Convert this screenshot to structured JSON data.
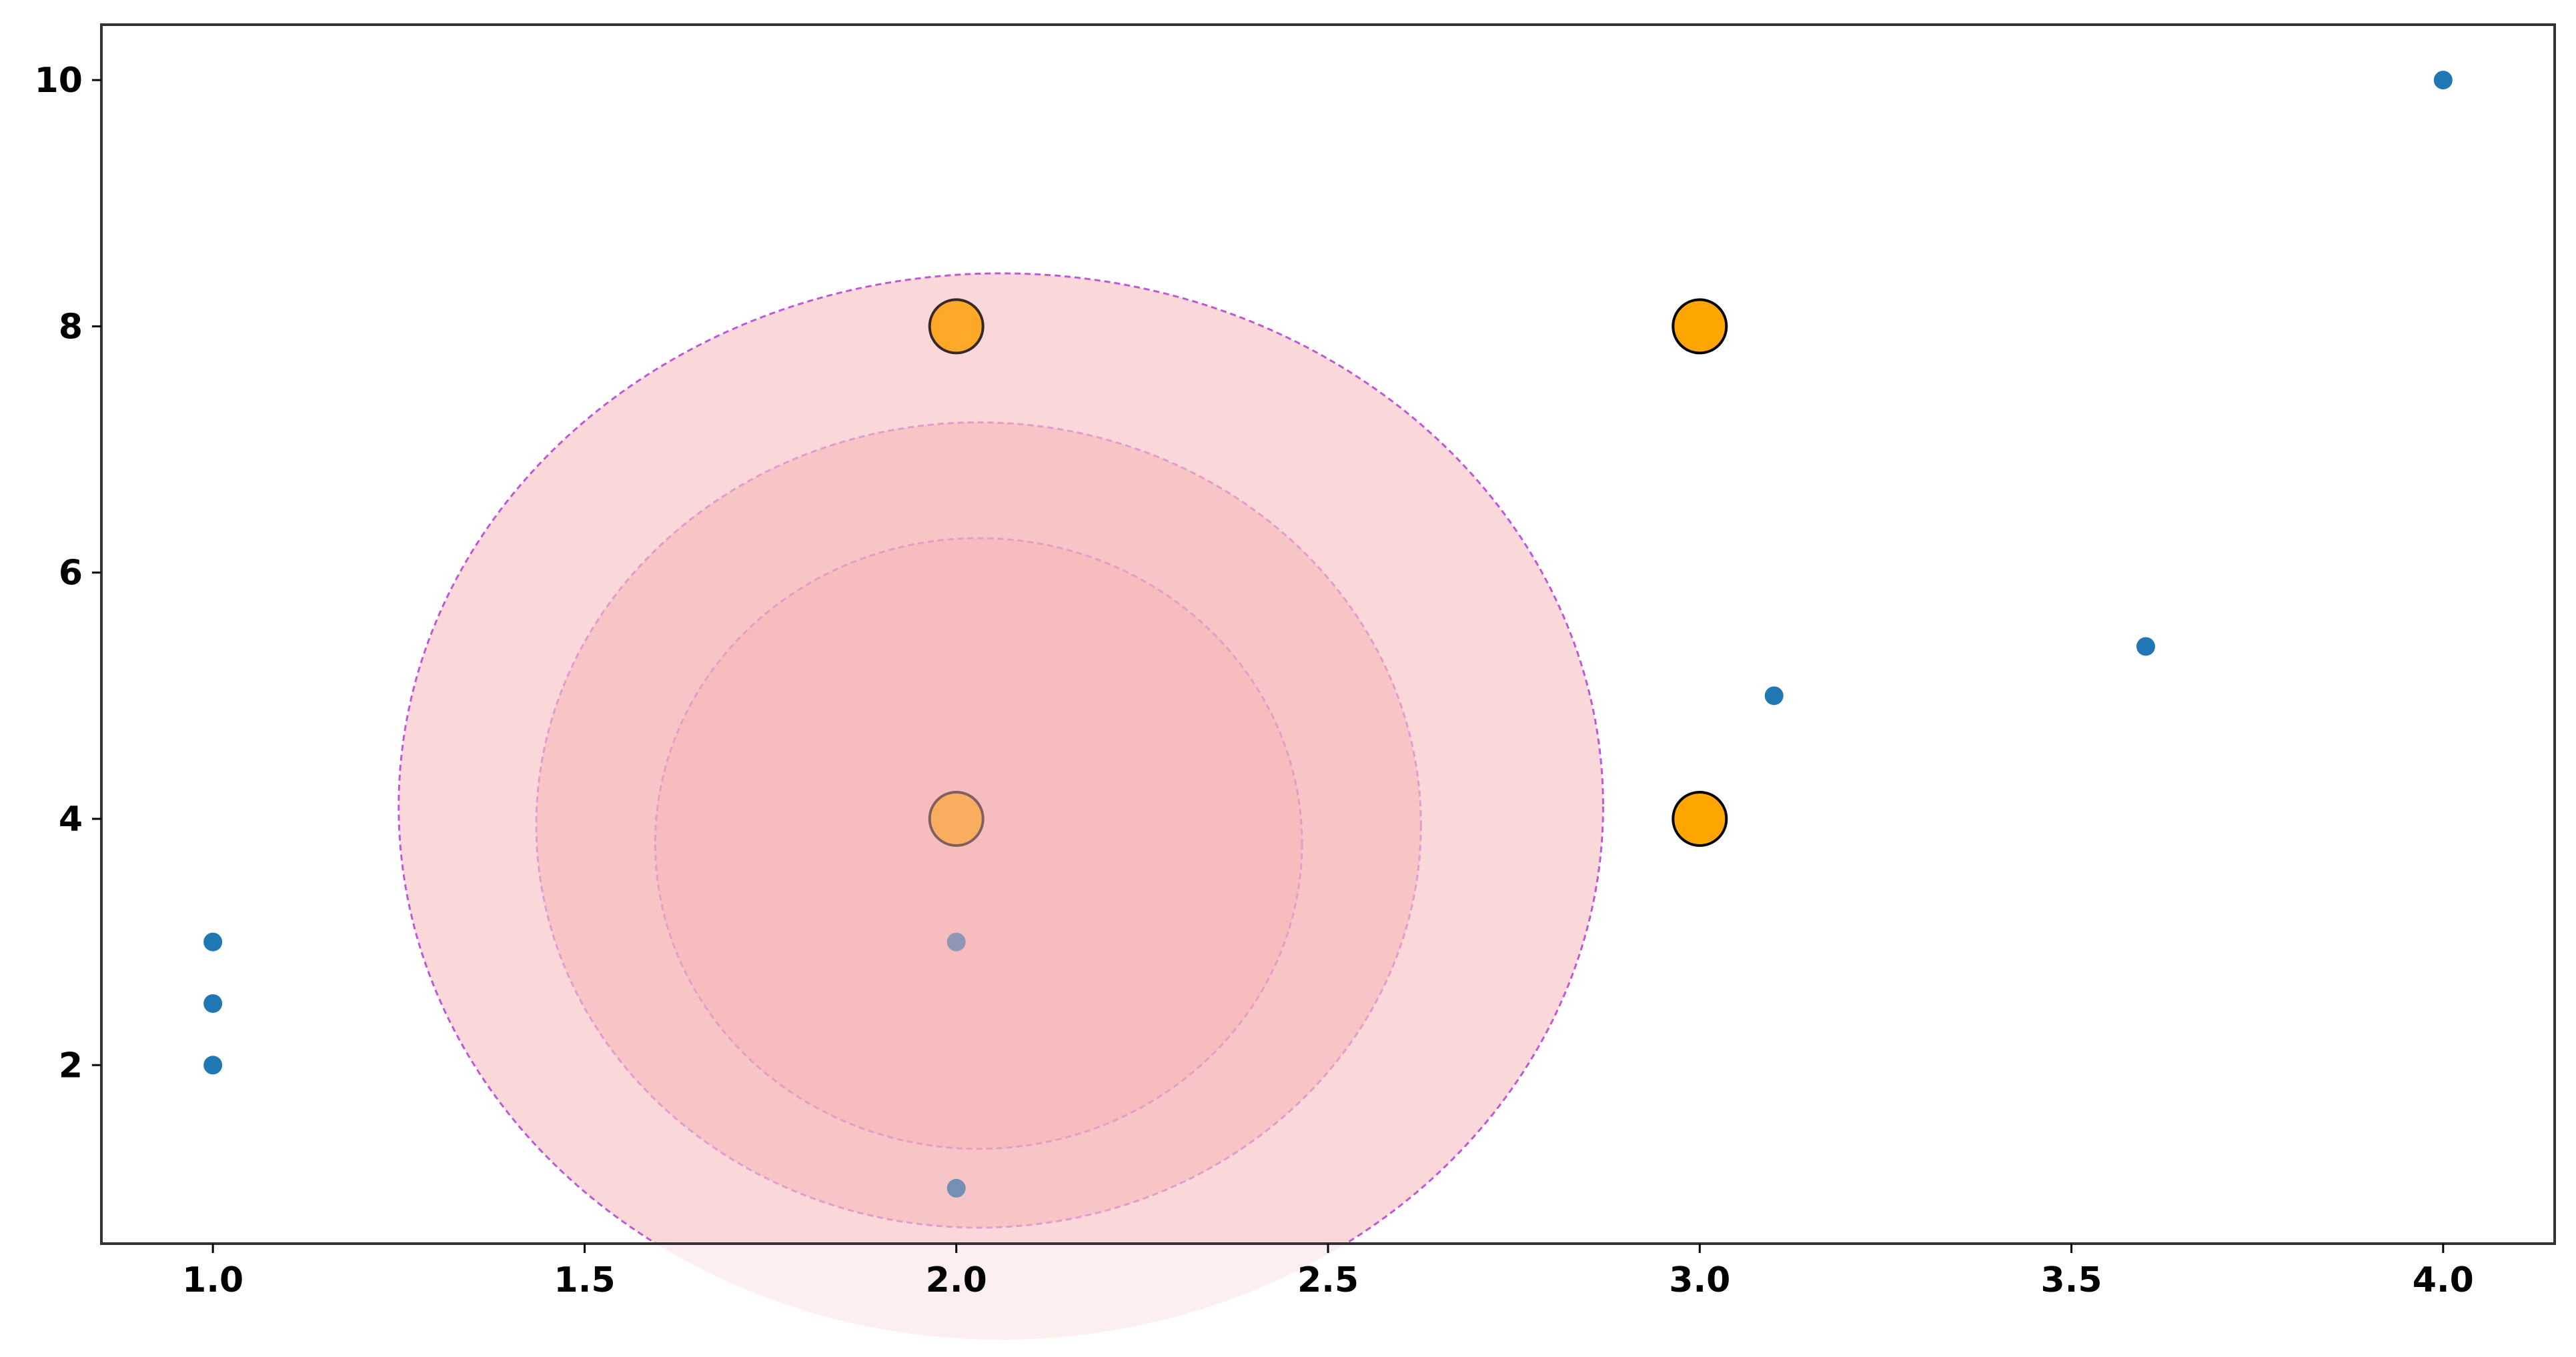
{
  "chart_data": {
    "type": "scatter",
    "xlim": [
      0.85,
      4.15
    ],
    "ylim": [
      0.55,
      10.45
    ],
    "x_ticks": [
      1.0,
      1.5,
      2.0,
      2.5,
      3.0,
      3.5,
      4.0
    ],
    "x_tick_labels": [
      "1.0",
      "1.5",
      "2.0",
      "2.5",
      "3.0",
      "3.5",
      "4.0"
    ],
    "y_ticks": [
      2,
      4,
      6,
      8,
      10
    ],
    "y_tick_labels": [
      "2",
      "4",
      "6",
      "8",
      "10"
    ],
    "grid": false,
    "title": "",
    "xlabel": "",
    "ylabel": "",
    "series": [
      {
        "marker": "small-dot",
        "color": "#1f77b4",
        "points": [
          {
            "x": 1.0,
            "y": 2.0
          },
          {
            "x": 1.0,
            "y": 2.5
          },
          {
            "x": 1.0,
            "y": 3.0
          },
          {
            "x": 2.0,
            "y": 1.0
          },
          {
            "x": 2.0,
            "y": 3.0
          },
          {
            "x": 3.1,
            "y": 5.0
          },
          {
            "x": 3.6,
            "y": 5.4
          },
          {
            "x": 4.0,
            "y": 10.0
          }
        ]
      },
      {
        "marker": "large-circle",
        "color": "#ffa500",
        "edge_color": "#000000",
        "points": [
          {
            "x": 2.0,
            "y": 4.0
          },
          {
            "x": 2.0,
            "y": 8.0
          },
          {
            "x": 3.0,
            "y": 4.0
          },
          {
            "x": 3.0,
            "y": 8.0
          }
        ]
      }
    ],
    "highlight_ellipses": {
      "fill_color": "#f8b4b8",
      "fill_opacity": 0.4,
      "edge_color": "#b03cd8",
      "edge_style": "dashed",
      "ellipses": [
        {
          "cx": 2.06,
          "cy": 4.1,
          "rx": 0.81,
          "ry": 4.33
        },
        {
          "cx": 2.03,
          "cy": 3.95,
          "rx": 0.595,
          "ry": 3.27
        },
        {
          "cx": 2.03,
          "cy": 3.8,
          "rx": 0.435,
          "ry": 2.48
        }
      ]
    }
  }
}
